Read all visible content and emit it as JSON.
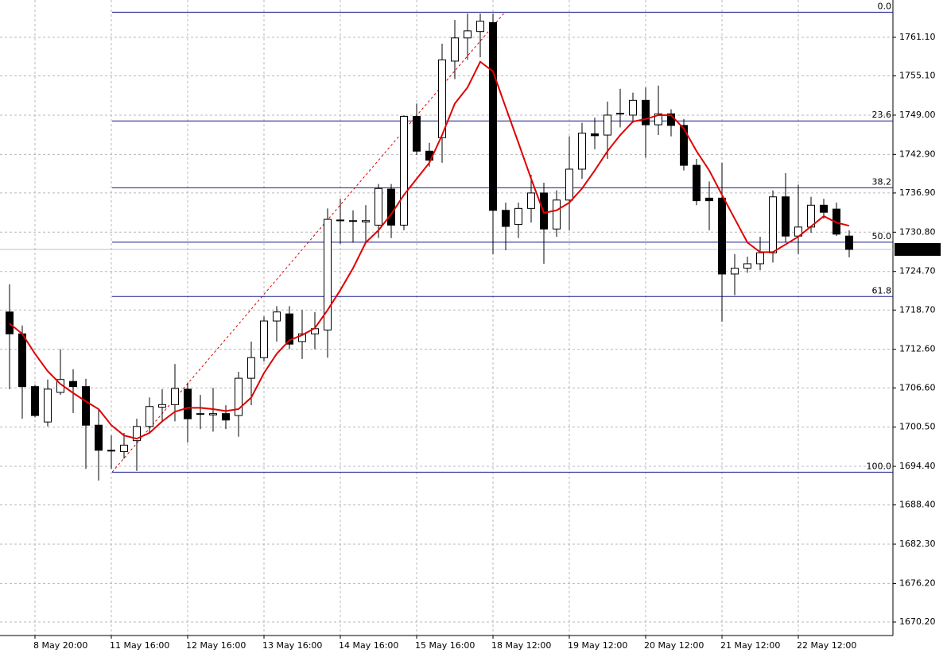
{
  "chart_data": {
    "type": "candlestick",
    "categories": [
      null,
      null,
      "8 May 20:00",
      null,
      null,
      null,
      null,
      null,
      "11 May 16:00",
      null,
      null,
      null,
      null,
      null,
      "12 May 16:00",
      null,
      null,
      null,
      null,
      null,
      "13 May 16:00",
      null,
      null,
      null,
      null,
      null,
      "14 May 16:00",
      null,
      null,
      null,
      null,
      null,
      "15 May 16:00",
      null,
      null,
      null,
      null,
      null,
      "18 May 12:00",
      null,
      null,
      null,
      null,
      null,
      "19 May 12:00",
      null,
      null,
      null,
      null,
      null,
      "20 May 12:00",
      null,
      null,
      null,
      null,
      null,
      "21 May 12:00",
      null,
      null,
      null,
      null,
      null,
      "22 May 12:00",
      null,
      null,
      null,
      null
    ],
    "open": [
      1718.4,
      1715.0,
      1706.8,
      1701.3,
      1705.9,
      1707.6,
      1706.8,
      1700.8,
      1696.9,
      1696.7,
      1698.4,
      1700.6,
      1703.6,
      1704.0,
      1706.4,
      1702.6,
      1702.4,
      1702.6,
      1702.3,
      1708.1,
      1711.3,
      1717.0,
      1718.1,
      1713.8,
      1715.0,
      1715.6,
      1732.7,
      1732.6,
      1732.4,
      1731.9,
      1737.5,
      1731.9,
      1748.8,
      1743.4,
      1745.5,
      1757.4,
      1761.0,
      1762.0,
      1763.4,
      1734.2,
      1732.0,
      1734.5,
      1736.9,
      1731.3,
      1735.8,
      1740.6,
      1746.1,
      1745.9,
      1749.2,
      1749.0,
      1751.3,
      1747.5,
      1749.2,
      1747.4,
      1741.2,
      1736.1,
      1736.1,
      1724.3,
      1725.2,
      1725.9,
      1727.6,
      1736.3,
      1730.2,
      1731.6,
      1735.0,
      1734.4,
      1730.2
    ],
    "high": [
      1722.7,
      1716.3,
      1707.1,
      1707.9,
      1712.6,
      1709.5,
      1708.0,
      1703.3,
      1699.2,
      1699.6,
      1701.8,
      1705.1,
      1706.4,
      1710.3,
      1707.4,
      1705.5,
      1706.6,
      1703.9,
      1709.1,
      1713.8,
      1717.7,
      1719.3,
      1719.3,
      1718.7,
      1718.4,
      1734.5,
      1736.0,
      1734.2,
      1735.0,
      1738.3,
      1738.3,
      1749.0,
      1750.8,
      1744.7,
      1760.1,
      1763.8,
      1764.8,
      1764.8,
      1764.8,
      1735.4,
      1735.4,
      1739.7,
      1738.5,
      1737.3,
      1745.7,
      1747.8,
      1748.6,
      1751.1,
      1753.1,
      1752.5,
      1753.3,
      1753.6,
      1749.9,
      1748.4,
      1742.2,
      1738.7,
      1741.6,
      1727.4,
      1727.0,
      1730.1,
      1737.3,
      1740.0,
      1738.2,
      1736.3,
      1736.0,
      1735.4,
      1731.1
    ],
    "low": [
      1706.4,
      1701.8,
      1702.0,
      1700.6,
      1705.5,
      1702.7,
      1694.0,
      1692.2,
      1694.0,
      1695.6,
      1693.7,
      1699.6,
      1701.4,
      1701.4,
      1698.1,
      1700.2,
      1699.8,
      1700.2,
      1699.0,
      1703.9,
      1710.7,
      1713.8,
      1712.6,
      1711.1,
      1712.6,
      1711.3,
      1729.0,
      1729.2,
      1729.2,
      1729.9,
      1729.9,
      1731.1,
      1742.8,
      1741.0,
      1741.6,
      1754.6,
      1757.6,
      1758.0,
      1727.4,
      1728.0,
      1729.9,
      1732.3,
      1725.9,
      1730.1,
      1731.1,
      1739.1,
      1743.7,
      1742.2,
      1747.1,
      1747.8,
      1742.4,
      1745.9,
      1745.7,
      1740.4,
      1735.0,
      1731.1,
      1716.9,
      1721.0,
      1724.5,
      1724.9,
      1726.1,
      1729.2,
      1727.4,
      1730.7,
      1732.9,
      1730.2,
      1726.9
    ],
    "close": [
      1715.0,
      1706.8,
      1702.3,
      1706.4,
      1707.9,
      1706.8,
      1700.8,
      1696.9,
      1696.8,
      1697.7,
      1700.6,
      1703.7,
      1704.0,
      1706.5,
      1701.8,
      1702.5,
      1702.6,
      1701.6,
      1708.1,
      1711.3,
      1717.0,
      1718.4,
      1713.4,
      1715.0,
      1715.8,
      1732.8,
      1732.6,
      1732.5,
      1732.6,
      1737.6,
      1731.9,
      1748.8,
      1743.4,
      1742.0,
      1757.6,
      1761.0,
      1762.1,
      1763.6,
      1734.2,
      1731.7,
      1734.5,
      1736.9,
      1731.3,
      1735.8,
      1740.6,
      1746.2,
      1745.8,
      1749.0,
      1749.3,
      1751.3,
      1747.5,
      1749.2,
      1747.4,
      1741.2,
      1735.7,
      1735.7,
      1724.3,
      1725.2,
      1725.9,
      1727.6,
      1736.3,
      1730.2,
      1731.6,
      1735.0,
      1733.9,
      1730.5,
      1728.12
    ],
    "ma": {
      "color": "#e00000",
      "values": [
        1716.6,
        1715.0,
        1711.9,
        1709.2,
        1707.2,
        1705.8,
        1704.5,
        1703.3,
        1700.8,
        1699.2,
        1698.7,
        1699.6,
        1701.4,
        1702.9,
        1703.5,
        1703.5,
        1703.3,
        1703.0,
        1703.3,
        1705.1,
        1708.9,
        1711.9,
        1714.0,
        1714.8,
        1715.9,
        1718.7,
        1721.8,
        1725.2,
        1729.2,
        1731.1,
        1733.6,
        1736.6,
        1739.1,
        1741.6,
        1745.9,
        1750.8,
        1753.3,
        1757.3,
        1755.8,
        1750.2,
        1744.7,
        1739.1,
        1733.8,
        1734.2,
        1735.4,
        1737.6,
        1740.4,
        1743.4,
        1745.9,
        1748.0,
        1748.4,
        1749.0,
        1749.0,
        1746.9,
        1743.4,
        1740.4,
        1736.6,
        1732.9,
        1729.2,
        1727.7,
        1727.7,
        1728.9,
        1730.1,
        1731.7,
        1733.3,
        1732.3,
        1731.8
      ]
    },
    "fib_color": "#1a1a8c",
    "fib_levels": [
      {
        "value": 1765.0,
        "label": "0.0"
      },
      {
        "value": 1748.1,
        "label": "23.6"
      },
      {
        "value": 1737.7,
        "label": "38.2"
      },
      {
        "value": 1729.25,
        "label": "50.0"
      },
      {
        "value": 1720.8,
        "label": "61.8"
      },
      {
        "value": 1693.5,
        "label": "100.0"
      }
    ],
    "current_price": 1728.12,
    "ylim": [
      1668.1,
      1766.9
    ],
    "yticks": [
      {
        "value": 1761.1,
        "label": "1761.10"
      },
      {
        "value": 1755.1,
        "label": "1755.10"
      },
      {
        "value": 1749.0,
        "label": "1749.00"
      },
      {
        "value": 1742.9,
        "label": "1742.90"
      },
      {
        "value": 1736.9,
        "label": "1736.90"
      },
      {
        "value": 1730.8,
        "label": "1730.80"
      },
      {
        "value": 1724.7,
        "label": "1724.70"
      },
      {
        "value": 1718.7,
        "label": "1718.70"
      },
      {
        "value": 1712.6,
        "label": "1712.60"
      },
      {
        "value": 1706.6,
        "label": "1706.60"
      },
      {
        "value": 1700.5,
        "label": "1700.50"
      },
      {
        "value": 1694.4,
        "label": "1694.40"
      },
      {
        "value": 1688.4,
        "label": "1688.40"
      },
      {
        "value": 1682.3,
        "label": "1682.30"
      },
      {
        "value": 1676.2,
        "label": "1676.20"
      },
      {
        "value": 1670.2,
        "label": "1670.20"
      }
    ],
    "grid": true
  }
}
